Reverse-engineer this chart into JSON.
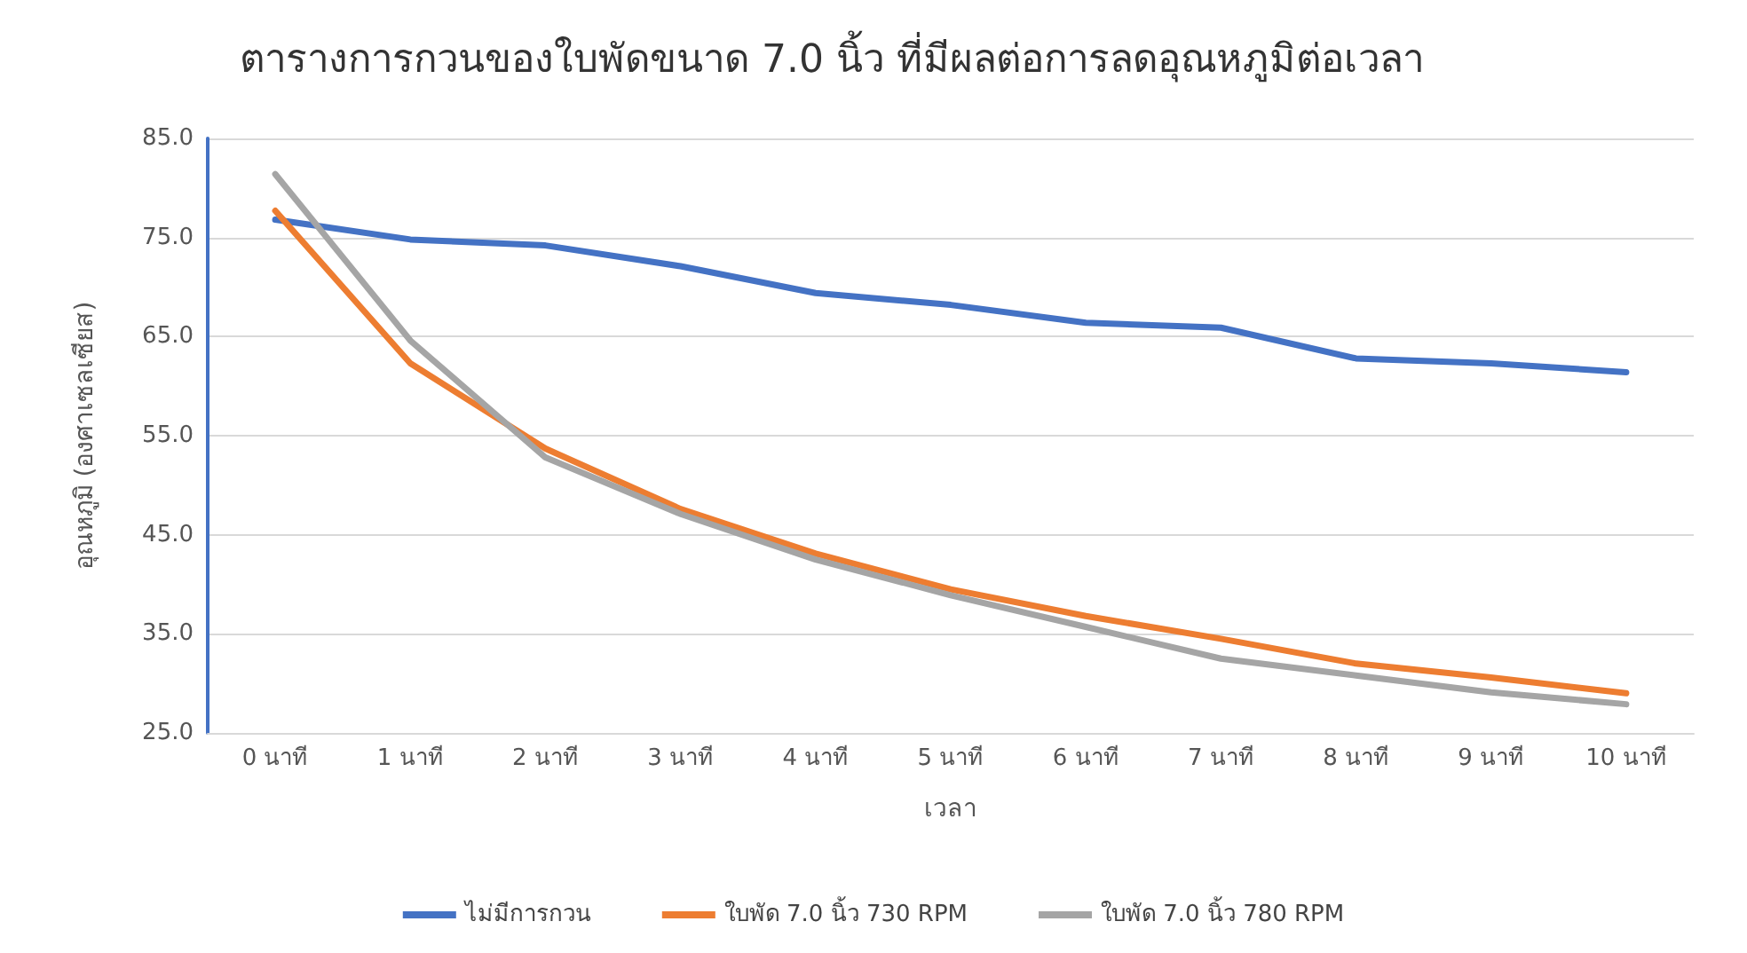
{
  "chart_data": {
    "type": "line",
    "title": "ตารางการกวนของใบพัดขนาด 7.0 นิ้ว ที่มีผลต่อการลดอุณหภูมิต่อเวลา",
    "xlabel": "เวลา",
    "ylabel": "อุณหภูมิ (องศาเซลเซียส)",
    "categories": [
      "0 นาที",
      "1 นาที",
      "2 นาที",
      "3 นาที",
      "4 นาที",
      "5 นาที",
      "6 นาที",
      "7 นาที",
      "8 นาที",
      "9 นาที",
      "10 นาที"
    ],
    "series": [
      {
        "name": "ไม่มีการกวน",
        "color": "#4472c4",
        "values": [
          76.8,
          74.8,
          74.2,
          72.1,
          69.4,
          68.2,
          66.4,
          65.9,
          62.8,
          62.3,
          61.4
        ]
      },
      {
        "name": "ใบพัด 7.0 นิ้ว 730 RPM",
        "color": "#ed7d31",
        "values": [
          77.7,
          62.3,
          53.7,
          47.6,
          43.1,
          39.5,
          36.8,
          34.5,
          32.0,
          30.6,
          29.0
        ]
      },
      {
        "name": "ใบพัด 7.0 นิ้ว 780 RPM",
        "color": "#a5a5a5",
        "values": [
          81.4,
          64.6,
          52.8,
          47.1,
          42.5,
          38.9,
          35.7,
          32.5,
          30.8,
          29.1,
          27.9
        ]
      }
    ],
    "ylim": [
      25,
      85
    ],
    "yticks": [
      {
        "value": 25,
        "label": "25.0"
      },
      {
        "value": 35,
        "label": "35.0"
      },
      {
        "value": 45,
        "label": "45.0"
      },
      {
        "value": 55,
        "label": "55.0"
      },
      {
        "value": 65,
        "label": "65.0"
      },
      {
        "value": 75,
        "label": "75.0"
      },
      {
        "value": 85,
        "label": "85.0"
      }
    ],
    "grid": "y",
    "legend": "bottom",
    "marker": "none",
    "line_style": "solid"
  }
}
